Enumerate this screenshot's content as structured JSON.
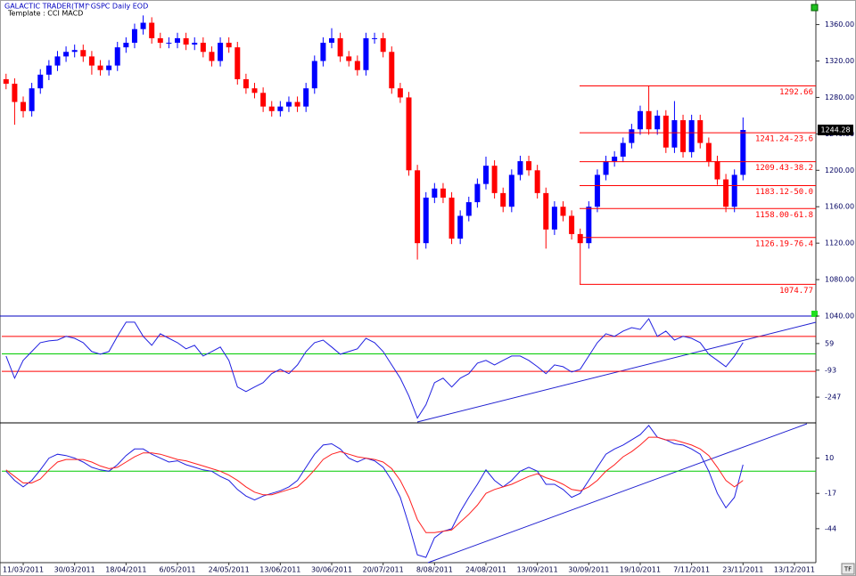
{
  "header": {
    "app": "GALACTIC TRADER(TM)",
    "symbol": "^GSPC Daily EOD",
    "template": "Template : CCI MACD"
  },
  "footer_icon": "TF",
  "chart_data": [
    {
      "type": "candlestick",
      "categories": [
        null,
        null,
        "11/03/2011",
        null,
        null,
        null,
        null,
        null,
        "30/03/2011",
        null,
        null,
        null,
        null,
        null,
        "18/04/2011",
        null,
        null,
        null,
        null,
        null,
        "6/05/2011",
        null,
        null,
        null,
        null,
        null,
        "24/05/2011",
        null,
        null,
        null,
        null,
        null,
        "13/06/2011",
        null,
        null,
        null,
        null,
        null,
        "30/06/2011",
        null,
        null,
        null,
        null,
        null,
        "20/07/2011",
        null,
        null,
        null,
        null,
        null,
        "8/08/2011",
        null,
        null,
        null,
        null,
        null,
        "24/08/2011",
        null,
        null,
        null,
        null,
        null,
        "13/09/2011",
        null,
        null,
        null,
        null,
        null,
        "30/09/2011",
        null,
        null,
        null,
        null,
        null,
        "19/10/2011",
        null,
        null,
        null,
        null,
        null,
        "7/11/2011",
        null,
        null,
        null,
        null,
        null,
        "23/11/2011",
        null,
        null,
        null,
        null,
        null,
        "13/12/2011",
        null,
        null
      ],
      "ohlc": [
        [
          1300,
          1306,
          1289,
          1295
        ],
        [
          1295,
          1301,
          1250,
          1275
        ],
        [
          1275,
          1281,
          1258,
          1265
        ],
        [
          1265,
          1296,
          1259,
          1290
        ],
        [
          1290,
          1311,
          1284,
          1305
        ],
        [
          1305,
          1321,
          1299,
          1315
        ],
        [
          1315,
          1331,
          1309,
          1325
        ],
        [
          1325,
          1336,
          1319,
          1330
        ],
        [
          1330,
          1338,
          1324,
          1332
        ],
        [
          1332,
          1338,
          1319,
          1325
        ],
        [
          1325,
          1331,
          1305,
          1315
        ],
        [
          1315,
          1321,
          1304,
          1310
        ],
        [
          1310,
          1321,
          1304,
          1315
        ],
        [
          1315,
          1341,
          1309,
          1335
        ],
        [
          1335,
          1346,
          1329,
          1340
        ],
        [
          1340,
          1361,
          1334,
          1355
        ],
        [
          1355,
          1370,
          1349,
          1362
        ],
        [
          1362,
          1368,
          1339,
          1345
        ],
        [
          1345,
          1351,
          1334,
          1340
        ],
        [
          1340,
          1346,
          1334,
          1340
        ],
        [
          1340,
          1351,
          1334,
          1345
        ],
        [
          1345,
          1351,
          1332,
          1338
        ],
        [
          1338,
          1346,
          1332,
          1340
        ],
        [
          1340,
          1346,
          1324,
          1330
        ],
        [
          1330,
          1336,
          1314,
          1320
        ],
        [
          1320,
          1346,
          1314,
          1340
        ],
        [
          1340,
          1346,
          1329,
          1335
        ],
        [
          1335,
          1341,
          1294,
          1300
        ],
        [
          1300,
          1306,
          1284,
          1290
        ],
        [
          1290,
          1296,
          1279,
          1285
        ],
        [
          1285,
          1291,
          1264,
          1270
        ],
        [
          1270,
          1276,
          1259,
          1265
        ],
        [
          1265,
          1276,
          1259,
          1270
        ],
        [
          1270,
          1281,
          1264,
          1275
        ],
        [
          1275,
          1281,
          1264,
          1270
        ],
        [
          1270,
          1296,
          1264,
          1290
        ],
        [
          1290,
          1326,
          1284,
          1320
        ],
        [
          1320,
          1346,
          1314,
          1340
        ],
        [
          1340,
          1356,
          1334,
          1345
        ],
        [
          1345,
          1351,
          1319,
          1325
        ],
        [
          1325,
          1331,
          1314,
          1320
        ],
        [
          1320,
          1326,
          1304,
          1310
        ],
        [
          1310,
          1351,
          1304,
          1345
        ],
        [
          1345,
          1351,
          1339,
          1345
        ],
        [
          1345,
          1351,
          1324,
          1330
        ],
        [
          1330,
          1336,
          1284,
          1290
        ],
        [
          1290,
          1296,
          1274,
          1280
        ],
        [
          1280,
          1286,
          1194,
          1200
        ],
        [
          1200,
          1206,
          1102,
          1120
        ],
        [
          1120,
          1176,
          1114,
          1170
        ],
        [
          1170,
          1186,
          1164,
          1180
        ],
        [
          1180,
          1186,
          1164,
          1170
        ],
        [
          1170,
          1176,
          1119,
          1125
        ],
        [
          1125,
          1156,
          1119,
          1150
        ],
        [
          1150,
          1171,
          1144,
          1165
        ],
        [
          1165,
          1191,
          1159,
          1185
        ],
        [
          1185,
          1215,
          1179,
          1205
        ],
        [
          1205,
          1211,
          1169,
          1175
        ],
        [
          1175,
          1181,
          1154,
          1160
        ],
        [
          1160,
          1201,
          1154,
          1195
        ],
        [
          1195,
          1216,
          1189,
          1210
        ],
        [
          1210,
          1216,
          1194,
          1200
        ],
        [
          1200,
          1206,
          1169,
          1175
        ],
        [
          1175,
          1181,
          1114,
          1135
        ],
        [
          1135,
          1166,
          1129,
          1160
        ],
        [
          1160,
          1166,
          1144,
          1150
        ],
        [
          1150,
          1156,
          1124,
          1130
        ],
        [
          1130,
          1136,
          1074.77,
          1120
        ],
        [
          1120,
          1166,
          1114,
          1160
        ],
        [
          1160,
          1201,
          1154,
          1195
        ],
        [
          1195,
          1216,
          1189,
          1210
        ],
        [
          1210,
          1221,
          1204,
          1215
        ],
        [
          1215,
          1236,
          1209,
          1230
        ],
        [
          1230,
          1251,
          1224,
          1245
        ],
        [
          1245,
          1271,
          1239,
          1265
        ],
        [
          1265,
          1292.66,
          1239,
          1245
        ],
        [
          1245,
          1266,
          1239,
          1260
        ],
        [
          1260,
          1266,
          1219,
          1225
        ],
        [
          1225,
          1276,
          1219,
          1255
        ],
        [
          1255,
          1261,
          1214,
          1220
        ],
        [
          1220,
          1261,
          1214,
          1255
        ],
        [
          1255,
          1261,
          1224,
          1230
        ],
        [
          1230,
          1236,
          1204,
          1210
        ],
        [
          1210,
          1216,
          1184,
          1190
        ],
        [
          1190,
          1196,
          1154,
          1160
        ],
        [
          1160,
          1201,
          1154,
          1195
        ],
        [
          1195,
          1258,
          1189,
          1244.28
        ],
        null,
        null,
        null,
        null,
        null,
        null,
        null,
        null
      ],
      "up_color": "#0000ff",
      "down_color": "#ff0000",
      "ylim": [
        1040,
        1385
      ],
      "yticks": [
        {
          "value": 1360,
          "label": "1360.00"
        },
        {
          "value": 1320,
          "label": "1320.00"
        },
        {
          "value": 1280,
          "label": "1280.00"
        },
        {
          "value": 1240,
          "label": "1240.00"
        },
        {
          "value": 1200,
          "label": "1200.00"
        },
        {
          "value": 1160,
          "label": "1160.00"
        },
        {
          "value": 1120,
          "label": "1120.00"
        },
        {
          "value": 1080,
          "label": "1080.00"
        },
        {
          "value": 1040,
          "label": "1040.00"
        }
      ],
      "fib_levels": [
        {
          "value": 1292.66,
          "label": "1292.66"
        },
        {
          "value": 1241.24,
          "label": "1241.24-23.6"
        },
        {
          "value": 1209.43,
          "label": "1209.43-38.2"
        },
        {
          "value": 1183.12,
          "label": "1183.12-50.0"
        },
        {
          "value": 1158.0,
          "label": "1158.00-61.8"
        },
        {
          "value": 1126.19,
          "label": "1126.19-76.4"
        },
        {
          "value": 1074.77,
          "label": "1074.77"
        }
      ],
      "fib_color": "#ff0000",
      "last_price": 1244.28
    },
    {
      "type": "line",
      "series": [
        {
          "color": "#2020e0",
          "values": [
            -12,
            -139,
            -37,
            13,
            64,
            74,
            79,
            100,
            89,
            64,
            13,
            -2,
            13,
            100,
            181,
            181,
            100,
            49,
            115,
            89,
            64,
            29,
            49,
            -12,
            13,
            39,
            -37,
            -189,
            -215,
            -189,
            -164,
            -113,
            -88,
            -113,
            -63,
            13,
            64,
            79,
            39,
            -2,
            13,
            29,
            89,
            64,
            13,
            -63,
            -139,
            -240,
            -367,
            -291,
            -164,
            -139,
            -189,
            -139,
            -113,
            -53,
            -37,
            -63,
            -37,
            -12,
            -12,
            -37,
            -73,
            -113,
            -63,
            -73,
            -103,
            -88,
            -12,
            64,
            115,
            100,
            130,
            150,
            140,
            201,
            100,
            130,
            79,
            100,
            89,
            64,
            -2,
            -37,
            -73,
            -12,
            64,
            null,
            null,
            null,
            null,
            null,
            null,
            null,
            null
          ]
        }
      ],
      "hlines": [
        {
          "value": 100,
          "color": "#ff0000"
        },
        {
          "value": 0,
          "color": "#00cc00"
        },
        {
          "value": -100,
          "color": "#ff0000"
        }
      ],
      "ylim": [
        -394,
        216
      ],
      "yticks": [
        59,
        -93,
        -247
      ]
    },
    {
      "type": "line",
      "series": [
        {
          "color": "#2020e0",
          "values": [
            0,
            -7,
            -12,
            -7,
            1,
            10,
            13,
            12,
            10,
            7,
            3,
            1,
            0,
            5,
            12,
            17,
            17,
            13,
            10,
            7,
            8,
            5,
            3,
            1,
            0,
            -4,
            -7,
            -14,
            -19,
            -22,
            -19,
            -17,
            -15,
            -12,
            -7,
            3,
            13,
            20,
            21,
            17,
            10,
            7,
            10,
            8,
            3,
            -7,
            -20,
            -41,
            -64,
            -66,
            -51,
            -46,
            -44,
            -31,
            -20,
            -10,
            1,
            -7,
            -12,
            -7,
            0,
            3,
            0,
            -10,
            -10,
            -14,
            -20,
            -17,
            -7,
            3,
            13,
            17,
            20,
            24,
            28,
            35,
            26,
            24,
            21,
            20,
            17,
            13,
            0,
            -17,
            -28,
            -20,
            5,
            null,
            null,
            null,
            null,
            null,
            null,
            null,
            null
          ]
        },
        {
          "color": "#ff2020",
          "values": [
            1,
            -4,
            -9,
            -9,
            -6,
            1,
            7,
            9,
            9,
            9,
            7,
            4,
            2,
            3,
            7,
            11,
            14,
            14,
            13,
            11,
            9,
            8,
            6,
            4,
            2,
            0,
            -3,
            -7,
            -12,
            -16,
            -18,
            -18,
            -16,
            -14,
            -12,
            -6,
            1,
            9,
            13,
            15,
            13,
            11,
            10,
            9,
            7,
            2,
            -7,
            -20,
            -37,
            -47,
            -47,
            -46,
            -45,
            -39,
            -33,
            -26,
            -17,
            -14,
            -12,
            -10,
            -7,
            -4,
            -2,
            -5,
            -7,
            -10,
            -14,
            -15,
            -12,
            -7,
            0,
            5,
            11,
            15,
            20,
            26,
            26,
            24,
            24,
            22,
            20,
            17,
            12,
            3,
            -7,
            -12,
            -7,
            null,
            null,
            null,
            null,
            null,
            null,
            null,
            null
          ]
        }
      ],
      "hlines": [
        {
          "value": 0,
          "color": "#00cc00"
        }
      ],
      "ylim": [
        -70,
        37
      ],
      "yticks": [
        10,
        -17,
        -44
      ]
    }
  ]
}
